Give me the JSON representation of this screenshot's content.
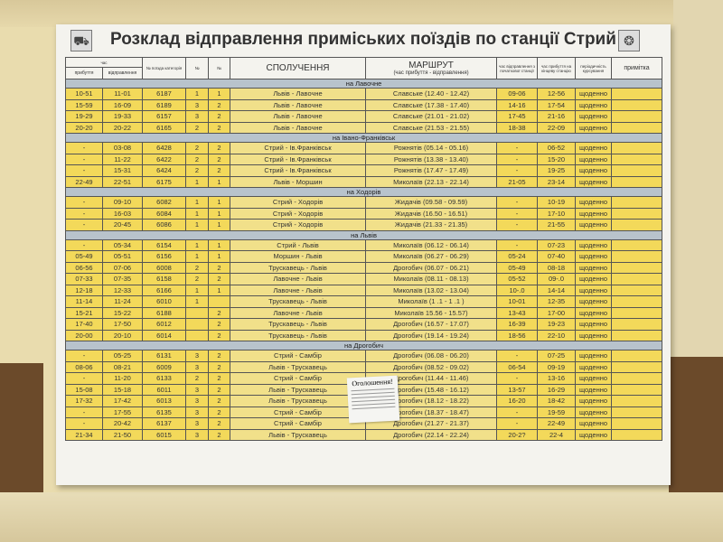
{
  "title": "Розклад відправлення приміських поїздів по станції Стрий",
  "header": {
    "time": "час",
    "arrival": "прибуття",
    "departure": "відправлення",
    "train": "№ поїзда категорія",
    "col4": "№",
    "col5": "№",
    "connection": "СПОЛУЧЕННЯ",
    "route": "МАРШРУТ",
    "route_sub": "(час прибуття - відправлення)",
    "start_dep": "час відправлення з початкової станції",
    "end_arr": "час прибуття на кінцеву станцію",
    "periodicity": "періодичність курсування",
    "note": "примітка"
  },
  "notice": "Оголошення!",
  "sections": [
    {
      "name": "на Лавочне",
      "rows": [
        [
          "10-51",
          "11-01",
          "6187",
          "1",
          "1",
          "Львів - Лавочне",
          "Славське (12.40 - 12.42)",
          "09-06",
          "12-56",
          "щоденно",
          ""
        ],
        [
          "15-59",
          "16-09",
          "6189",
          "3",
          "2",
          "Львів - Лавочне",
          "Славське (17.38 - 17.40)",
          "14-16",
          "17-54",
          "щоденно",
          ""
        ],
        [
          "19-29",
          "19-33",
          "6157",
          "3",
          "2",
          "Львів - Лавочне",
          "Славське (21.01 - 21.02)",
          "17-45",
          "21-16",
          "щоденно",
          ""
        ],
        [
          "20-20",
          "20-22",
          "6165",
          "2",
          "2",
          "Львів - Лавочне",
          "Славське (21.53 - 21.55)",
          "18-38",
          "22-09",
          "щоденно",
          ""
        ]
      ]
    },
    {
      "name": "на Івано-Франківськ",
      "rows": [
        [
          "-",
          "03-08",
          "6428",
          "2",
          "2",
          "Стрий - Ів.Франківськ",
          "Рожнятів (05.14 - 05.16)",
          "-",
          "06-52",
          "щоденно",
          ""
        ],
        [
          "-",
          "11-22",
          "6422",
          "2",
          "2",
          "Стрий - Ів.Франківськ",
          "Рожнятів (13.38 - 13.40)",
          "-",
          "15-20",
          "щоденно",
          ""
        ],
        [
          "-",
          "15-31",
          "6424",
          "2",
          "2",
          "Стрий - Ів.Франківськ",
          "Рожнятів (17.47 - 17.49)",
          "-",
          "19-25",
          "щоденно",
          ""
        ],
        [
          "22-49",
          "22-51",
          "6175",
          "1",
          "1",
          "Львів - Моршин",
          "Миколаїв (22.13 - 22.14)",
          "21-05",
          "23-14",
          "щоденно",
          ""
        ]
      ]
    },
    {
      "name": "на Ходорів",
      "rows": [
        [
          "-",
          "09-10",
          "6082",
          "1",
          "1",
          "Стрий - Ходорів",
          "Жидачів (09.58 - 09.59)",
          "-",
          "10-19",
          "щоденно",
          ""
        ],
        [
          "-",
          "16-03",
          "6084",
          "1",
          "1",
          "Стрий - Ходорів",
          "Жидачів (16.50 - 16.51)",
          "-",
          "17-10",
          "щоденно",
          ""
        ],
        [
          "-",
          "20-45",
          "6086",
          "1",
          "1",
          "Стрий - Ходорів",
          "Жидачів (21.33 - 21.35)",
          "-",
          "21-55",
          "щоденно",
          ""
        ]
      ]
    },
    {
      "name": "на Львів",
      "rows": [
        [
          "-",
          "05-34",
          "6154",
          "1",
          "1",
          "Стрий - Львів",
          "Миколаїв (06.12 - 06.14)",
          "-",
          "07-23",
          "щоденно",
          ""
        ],
        [
          "05-49",
          "05-51",
          "6156",
          "1",
          "1",
          "Моршин - Львів",
          "Миколаїв (06.27 - 06.29)",
          "05-24",
          "07-40",
          "щоденно",
          ""
        ],
        [
          "06-56",
          "07-06",
          "6008",
          "2",
          "2",
          "Трускавець - Львів",
          "Дрогобич (06.07 - 06.21)",
          "05-49",
          "08-18",
          "щоденно",
          ""
        ],
        [
          "07-33",
          "07-35",
          "6158",
          "2",
          "2",
          "Лавочне - Львів",
          "Миколаїв (08.11 - 08.13)",
          "05-52",
          "09-.0",
          "щоденно",
          ""
        ],
        [
          "12-18",
          "12-33",
          "6166",
          "1",
          "1",
          "Лавочне - Львів",
          "Миколаїв (13.02 - 13.04)",
          "10-.0",
          "14-14",
          "щоденно",
          ""
        ],
        [
          "11-14",
          "11-24",
          "6010",
          "1",
          "",
          "Трускавець - Львів",
          "Миколаїв (1 .1 - 1 .1 )",
          "10-01",
          "12-35",
          "щоденно",
          ""
        ],
        [
          "15-21",
          "15-22",
          "6188",
          "",
          "2",
          "Лавочне - Львів",
          "Миколаїв 15.56 - 15.57)",
          "13-43",
          "17-00",
          "щоденно",
          ""
        ],
        [
          "17-40",
          "17-50",
          "6012",
          "",
          "2",
          "Трускавець - Львів",
          "Дрогобич (16.57 - 17.07)",
          "16-39",
          "19-23",
          "щоденно",
          ""
        ],
        [
          "20-00",
          "20-10",
          "6014",
          "",
          "2",
          "Трускавець - Львів",
          "Дрогобич (19.14 - 19.24)",
          "18-56",
          "22-10",
          "щоденно",
          ""
        ]
      ]
    },
    {
      "name": "на Дрогобич",
      "rows": [
        [
          "-",
          "05-25",
          "6131",
          "3",
          "2",
          "Стрий - Самбір",
          "Дрогобич (06.08 - 06.20)",
          "-",
          "07-25",
          "щоденно",
          ""
        ],
        [
          "08-06",
          "08-21",
          "6009",
          "3",
          "2",
          "Львів - Трускавець",
          "Дрогобич (08.52 - 09.02)",
          "06-54",
          "09-19",
          "щоденно",
          ""
        ],
        [
          "-",
          "11-20",
          "6133",
          "2",
          "2",
          "Стрий - Самбір",
          "Дрогобич (11.44 - 11.46)",
          "-",
          "13-16",
          "щоденно",
          ""
        ],
        [
          "15-08",
          "15-18",
          "6011",
          "3",
          "2",
          "Львів - Трускавець",
          "Дрогобич (15.48 - 16.12)",
          "13-57",
          "16-29",
          "щоденно",
          ""
        ],
        [
          "17-32",
          "17-42",
          "6013",
          "3",
          "2",
          "Львів - Трускавець",
          "Дрогобич (18.12 - 18.22)",
          "16-20",
          "18-42",
          "щоденно",
          ""
        ],
        [
          "-",
          "17-55",
          "6135",
          "3",
          "2",
          "Стрий - Самбір",
          "Дрогобич (18.37 - 18.47)",
          "-",
          "19-59",
          "щоденно",
          ""
        ],
        [
          "-",
          "20-42",
          "6137",
          "3",
          "2",
          "Стрий - Самбір",
          "Дрогобич (21.27 - 21.37)",
          "-",
          "22-49",
          "щоденно",
          ""
        ],
        [
          "21-34",
          "21-50",
          "6015",
          "3",
          "2",
          "Львів - Трускавець",
          "Дрогобич (22.14 - 22.24)",
          "20-2?",
          "22-4",
          "щоденно",
          ""
        ]
      ]
    }
  ]
}
